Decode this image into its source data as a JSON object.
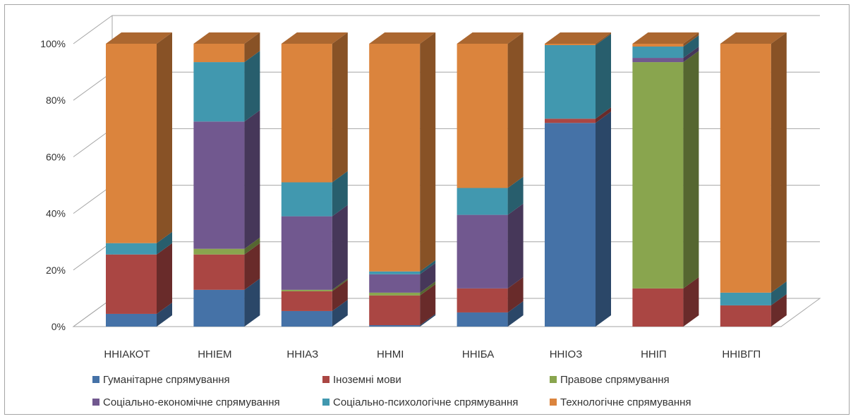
{
  "chart_data": {
    "type": "bar",
    "subtype": "3d-stacked-100-percent",
    "title": "",
    "xlabel": "",
    "ylabel": "",
    "ylim": [
      0,
      100
    ],
    "y_ticks": [
      "0%",
      "20%",
      "40%",
      "60%",
      "80%",
      "100%"
    ],
    "grid": true,
    "legend_position": "bottom",
    "categories": [
      "ННІАКОТ",
      "ННІЕМ",
      "ННІАЗ",
      "ННМІ",
      "ННІБА",
      "ННІОЗ",
      "ННІП",
      "ННІВГП"
    ],
    "series": [
      {
        "name": "Гуманітарне спрямування",
        "color": "#4572a7",
        "values": [
          4.5,
          13,
          5.5,
          0.5,
          5,
          72,
          0,
          0
        ]
      },
      {
        "name": "Іноземні мови",
        "color": "#aa4643",
        "values": [
          21,
          12.5,
          7,
          10.5,
          8.5,
          1.5,
          13.5,
          7.5
        ]
      },
      {
        "name": "Правове спрямування",
        "color": "#89a54e",
        "values": [
          0,
          2,
          0.5,
          1,
          0,
          0,
          80,
          0
        ]
      },
      {
        "name": "Соціально-економічне спрямування",
        "color": "#71588f",
        "values": [
          0,
          45,
          26,
          6.5,
          26,
          0,
          1.5,
          0
        ]
      },
      {
        "name": "Соціально-психологічне спрямування",
        "color": "#4198af",
        "values": [
          4,
          21,
          12,
          1,
          9.5,
          26,
          4,
          4.5
        ]
      },
      {
        "name": "Технологічне спрямування",
        "color": "#db843d",
        "values": [
          70.5,
          6.5,
          49,
          80.5,
          51,
          0.5,
          1,
          88
        ]
      }
    ]
  },
  "icons": {
    "legend_marker": "square-swatch"
  }
}
